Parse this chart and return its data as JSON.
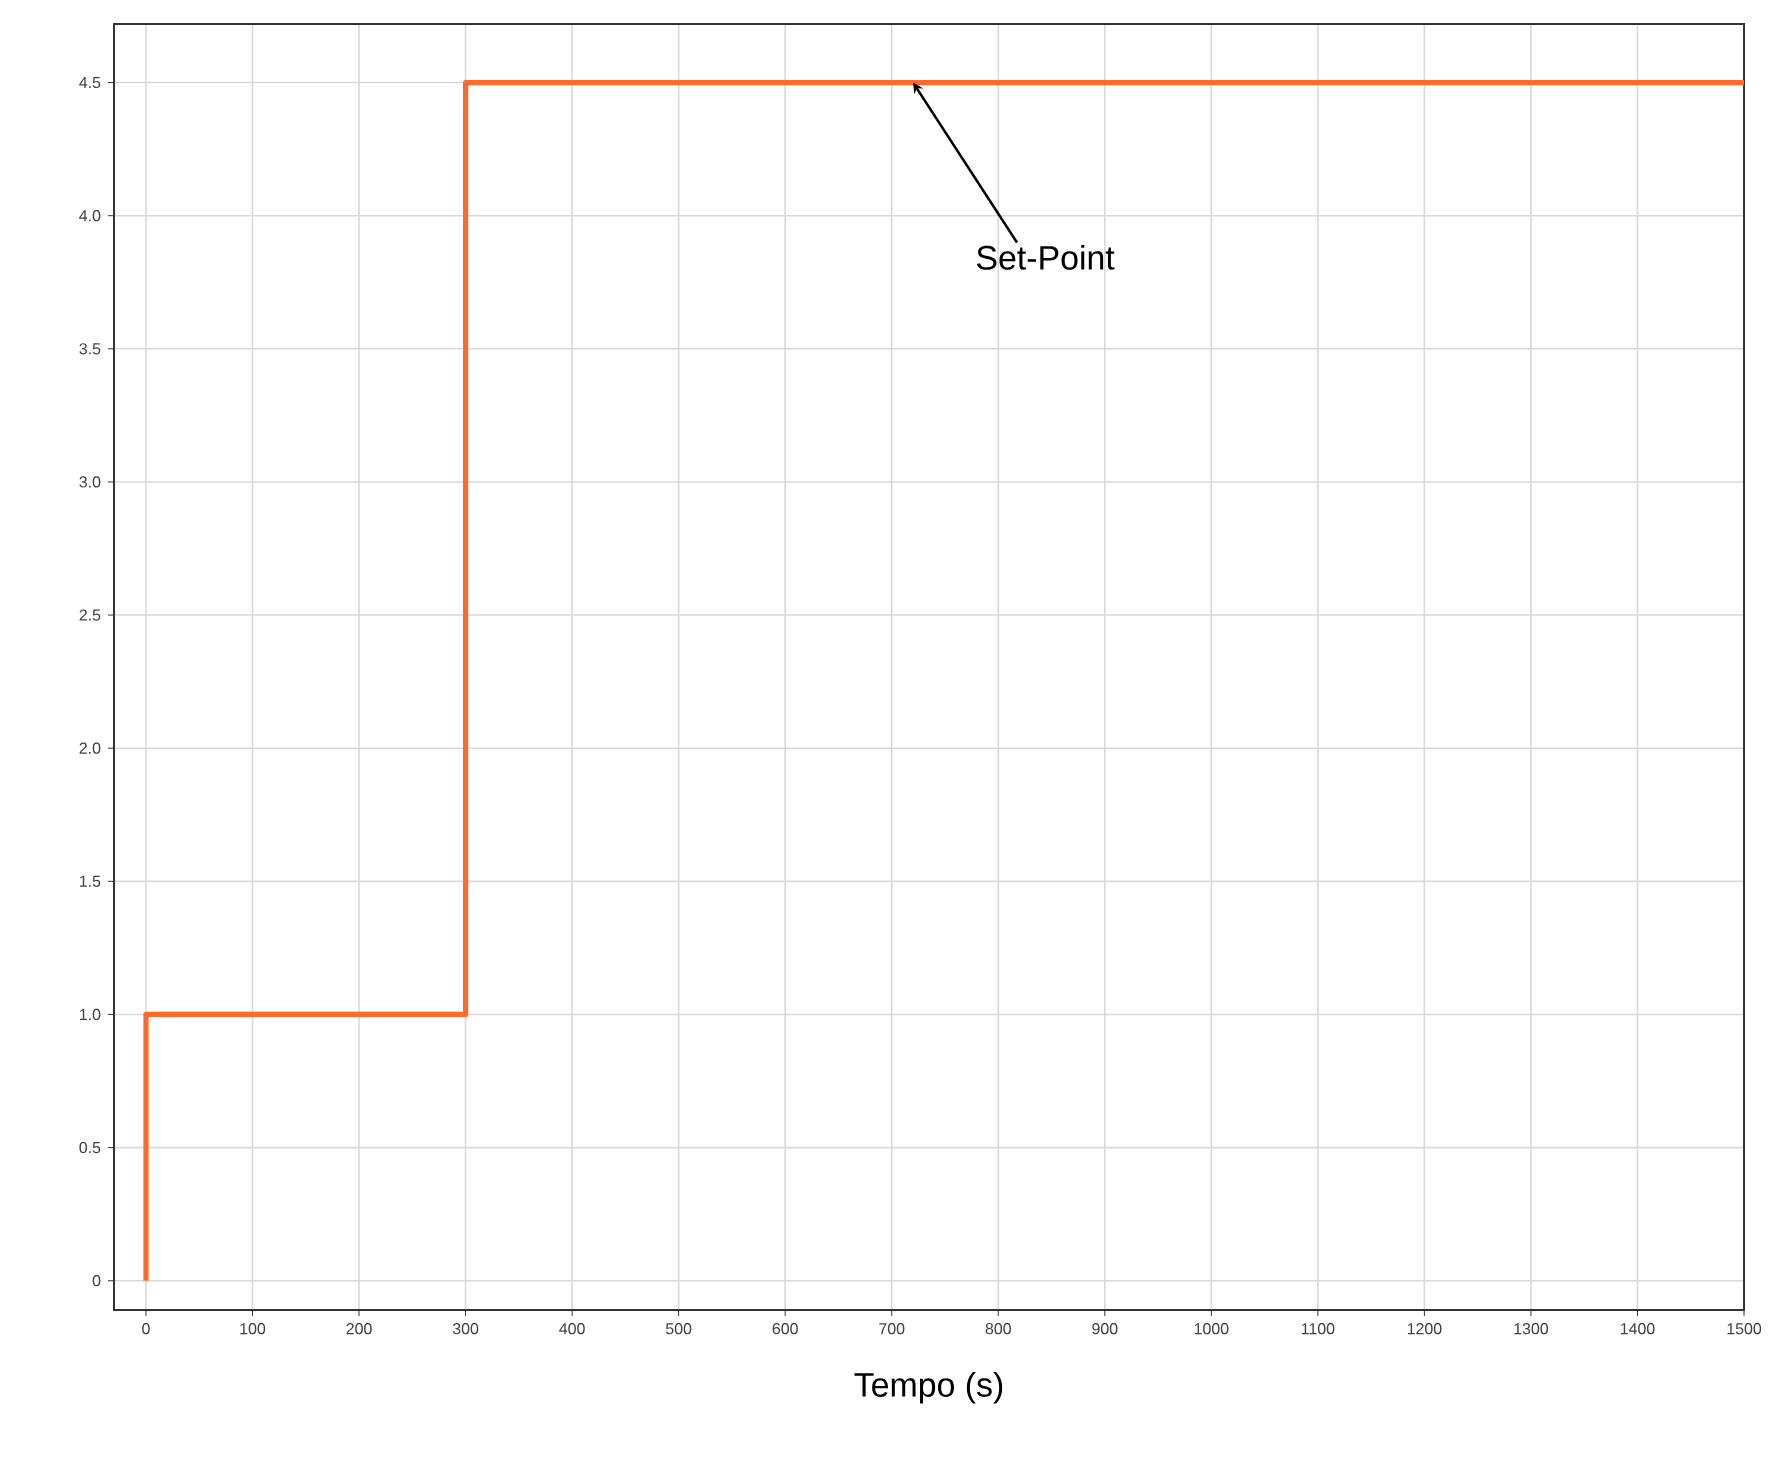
{
  "chart_data": {
    "type": "line",
    "xlabel": "Tempo (s)",
    "x": [
      0,
      0,
      300,
      300,
      1500
    ],
    "series": [
      {
        "color": "#ff6a2b",
        "values": [
          0,
          1,
          1,
          4.5,
          4.5
        ]
      }
    ],
    "xlim": [
      -30,
      1500
    ],
    "ylim": [
      -0.11,
      4.72
    ],
    "xticks": [
      0,
      100,
      200,
      300,
      400,
      500,
      600,
      700,
      800,
      900,
      1000,
      1100,
      1200,
      1300,
      1400,
      1500
    ],
    "yticks": [
      0,
      {
        "value": 0.5,
        "label": "0.5"
      },
      {
        "value": 1,
        "label": "1.0"
      },
      {
        "value": 1.5,
        "label": "1.5"
      },
      {
        "value": 2,
        "label": "2.0"
      },
      {
        "value": 2.5,
        "label": "2.5"
      },
      {
        "value": 3,
        "label": "3.0"
      },
      {
        "value": 3.5,
        "label": "3.5"
      },
      {
        "value": 4,
        "label": "4.0"
      },
      {
        "value": 4.5,
        "label": "4.5"
      }
    ],
    "grid": true,
    "marker": "none",
    "line_style": "solid",
    "annotations": [
      {
        "text": "Set-Point",
        "x": 720,
        "y": 4.5
      }
    ]
  }
}
